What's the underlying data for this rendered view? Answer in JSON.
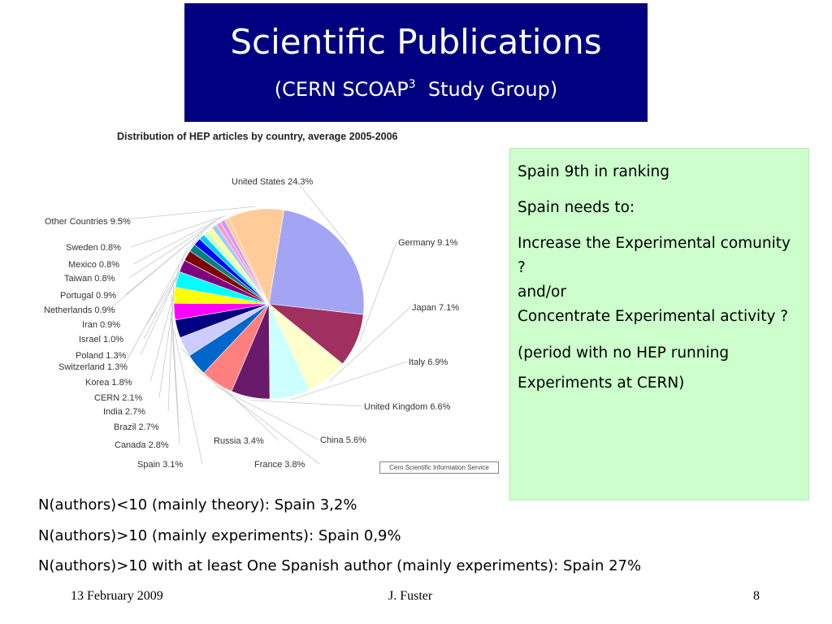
{
  "slide": {
    "title": "Scientific Publications",
    "subtitle_pre": "(CERN SCOAP",
    "subtitle_sup": "3",
    "subtitle_post": "  Study Group)",
    "credit": "Cern Scientific Information Service",
    "notes": [
      "Spain 9th in ranking",
      "",
      "Spain needs to:",
      "",
      "Increase the Experimental comunity ?",
      "and/or",
      "Concentrate Experimental activity ?",
      "",
      "(period with no HEP running Experiments at CERN)"
    ],
    "bullets": [
      {
        "bold": "N(authors)<10",
        "rest": " (mainly theory): Spain 3,2%"
      },
      {
        "bold": "N(authors)>10",
        "rest": " (mainly experiments): Spain 0,9%"
      },
      {
        "bold": "N(authors)>10 with at least One Spanish author",
        "rest": " (mainly experiments): Spain 27%"
      }
    ],
    "footer": {
      "date": "13 February 2009",
      "author": "J. Fuster",
      "page": "8"
    }
  },
  "chart_data": {
    "type": "pie",
    "title": "Distribution of HEP articles by country, average 2005-2006",
    "unit": "%",
    "slices": [
      {
        "label": "United States",
        "value": 24.3,
        "color": "#a4a4f4"
      },
      {
        "label": "Germany",
        "value": 9.1,
        "color": "#a03060"
      },
      {
        "label": "Japan",
        "value": 7.1,
        "color": "#ffffcc"
      },
      {
        "label": "Italy",
        "value": 6.9,
        "color": "#ccffff"
      },
      {
        "label": "United Kingdom",
        "value": 6.6,
        "color": "#6a1a6a"
      },
      {
        "label": "China",
        "value": 5.6,
        "color": "#ff7f7f"
      },
      {
        "label": "France",
        "value": 3.8,
        "color": "#0066cc"
      },
      {
        "label": "Russia",
        "value": 3.4,
        "color": "#ccccff"
      },
      {
        "label": "Spain",
        "value": 3.1,
        "color": "#000080"
      },
      {
        "label": "Canada",
        "value": 2.8,
        "color": "#ff00ff"
      },
      {
        "label": "Brazil",
        "value": 2.7,
        "color": "#ffff00"
      },
      {
        "label": "India",
        "value": 2.7,
        "color": "#00ffff"
      },
      {
        "label": "CERN",
        "value": 2.1,
        "color": "#800080"
      },
      {
        "label": "Korea",
        "value": 1.8,
        "color": "#800000"
      },
      {
        "label": "Switzerland",
        "value": 1.3,
        "color": "#008080"
      },
      {
        "label": "Poland",
        "value": 1.3,
        "color": "#0000ff"
      },
      {
        "label": "Israel",
        "value": 1.0,
        "color": "#00ccff"
      },
      {
        "label": "Iran",
        "value": 0.9,
        "color": "#ccffcc"
      },
      {
        "label": "Netherlands",
        "value": 0.9,
        "color": "#ffff99"
      },
      {
        "label": "Portugal",
        "value": 0.9,
        "color": "#99ccff"
      },
      {
        "label": "Taiwan",
        "value": 0.8,
        "color": "#ff99cc"
      },
      {
        "label": "Mexico",
        "value": 0.8,
        "color": "#cc99ff"
      },
      {
        "label": "Sweden",
        "value": 0.8,
        "color": "#ffcc99"
      },
      {
        "label": "Other Countries",
        "value": 9.5,
        "color": "#ffcc99"
      }
    ],
    "labels": [
      "United States 24.3%",
      "Germany 9.1%",
      "Japan 7.1%",
      "Italy 6.9%",
      "United Kingdom 6.6%",
      "China 5.6%",
      "France 3.8%",
      "Russia 3.4%",
      "Spain 3.1%",
      "Canada 2.8%",
      "Brazil 2.7%",
      "India 2.7%",
      "CERN 2.1%",
      "Korea 1.8%",
      "Switzerland 1.3%",
      "Poland 1.3%",
      "Israel 1.0%",
      "Iran 0.9%",
      "Netherlands 0.9%",
      "Portugal 0.9%",
      "Taiwan 0.8%",
      "Mexico 0.8%",
      "Sweden 0.8%",
      "Other Countries 9.5%"
    ]
  }
}
